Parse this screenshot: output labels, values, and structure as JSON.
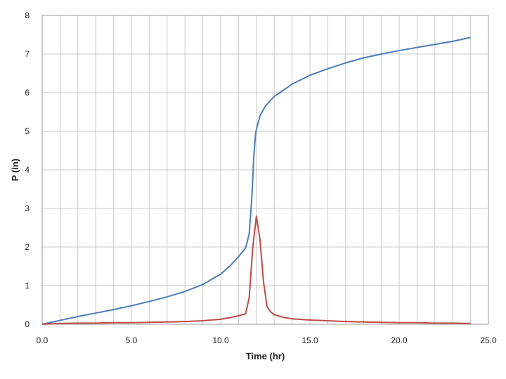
{
  "chart_data": {
    "type": "line",
    "title": "",
    "xlabel": "Time (hr)",
    "ylabel": "P (in)",
    "xlim": [
      0,
      25
    ],
    "ylim": [
      0,
      8
    ],
    "xticks": [
      0,
      5,
      10,
      15,
      20,
      25
    ],
    "xtick_labels": [
      "0.0",
      "5.0",
      "10.0",
      "15.0",
      "20.0",
      "25.0"
    ],
    "yticks": [
      0,
      1,
      2,
      3,
      4,
      5,
      6,
      7,
      8
    ],
    "ytick_labels": [
      "0",
      "1",
      "2",
      "3",
      "4",
      "5",
      "6",
      "7",
      "8"
    ],
    "grid": true,
    "legend": "none",
    "series": [
      {
        "color": "#4a7ebb",
        "x": [
          0,
          1,
          2,
          3,
          4,
          5,
          6,
          7,
          8,
          9,
          10,
          10.5,
          11,
          11.4,
          11.6,
          11.75,
          11.85,
          11.95,
          12.0,
          12.2,
          12.5,
          13,
          14,
          15,
          16,
          17,
          18,
          19,
          20,
          21,
          22,
          23,
          24
        ],
        "y": [
          0,
          0.1,
          0.2,
          0.29,
          0.38,
          0.48,
          0.59,
          0.71,
          0.85,
          1.03,
          1.3,
          1.5,
          1.75,
          1.98,
          2.35,
          3.3,
          4.3,
          4.9,
          5.05,
          5.4,
          5.65,
          5.9,
          6.22,
          6.45,
          6.62,
          6.77,
          6.9,
          7.0,
          7.09,
          7.17,
          7.25,
          7.33,
          7.43
        ]
      },
      {
        "color": "#be4b48",
        "x": [
          0,
          1,
          2,
          3,
          4,
          5,
          6,
          7,
          8,
          9,
          10,
          10.5,
          11,
          11.4,
          11.6,
          11.8,
          12.0,
          12.2,
          12.4,
          12.6,
          12.8,
          13,
          13.5,
          14,
          15,
          16,
          17,
          18,
          19,
          20,
          21,
          22,
          23,
          24
        ],
        "y": [
          0,
          0.02,
          0.03,
          0.03,
          0.04,
          0.04,
          0.05,
          0.06,
          0.07,
          0.09,
          0.13,
          0.17,
          0.22,
          0.27,
          0.7,
          2.0,
          2.8,
          2.2,
          1.1,
          0.45,
          0.32,
          0.25,
          0.18,
          0.14,
          0.11,
          0.09,
          0.07,
          0.06,
          0.05,
          0.04,
          0.04,
          0.03,
          0.03,
          0.02
        ]
      }
    ]
  }
}
